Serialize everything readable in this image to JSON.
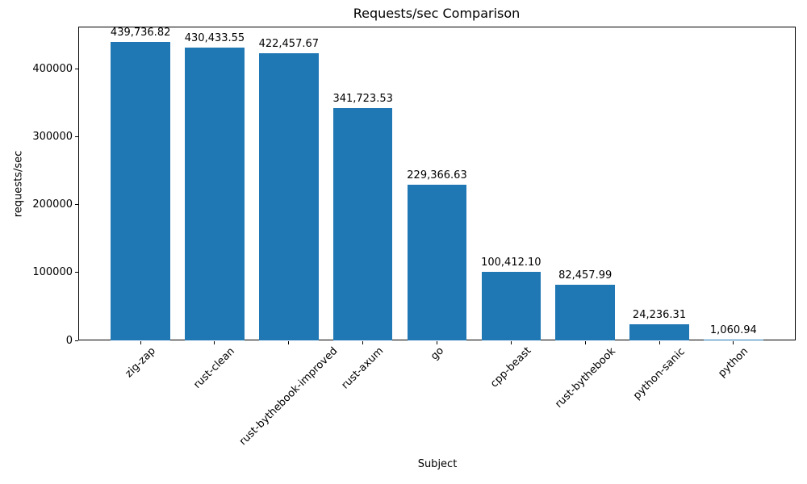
{
  "chart_data": {
    "type": "bar",
    "title": "Requests/sec Comparison",
    "xlabel": "Subject",
    "ylabel": "requests/sec",
    "categories": [
      "zig-zap",
      "rust-clean",
      "rust-bythebook-improved",
      "rust-axum",
      "go",
      "cpp-beast",
      "rust-bythebook",
      "python-sanic",
      "python"
    ],
    "values": [
      439736.82,
      430433.55,
      422457.67,
      341723.53,
      229366.63,
      100412.1,
      82457.99,
      24236.31,
      1060.94
    ],
    "bar_value_labels": [
      "439,736.82",
      "430,433.55",
      "422,457.67",
      "341,723.53",
      "229,366.63",
      "100,412.10",
      "82,457.99",
      "24,236.31",
      "1,060.94"
    ],
    "yticks": [
      0,
      100000,
      200000,
      300000,
      400000
    ],
    "ytick_labels": [
      "0",
      "100000",
      "200000",
      "300000",
      "400000"
    ],
    "ylim": [
      0,
      461724
    ],
    "xtick_rotation": 45,
    "grid": false,
    "legend": null,
    "bar_color": "#1f77b4",
    "text_color": "#000000"
  }
}
